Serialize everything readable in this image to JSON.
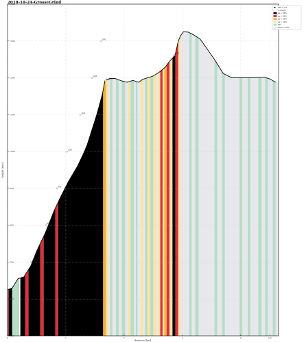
{
  "chart_data": {
    "type": "area",
    "title": "2018-10-24-GrosseGrind",
    "xlabel": "distance [km]",
    "ylabel": "height [mas]",
    "xlim": [
      0,
      4.65
    ],
    "ylim": [
      500,
      1400
    ],
    "x_ticks": [
      {
        "value": 0,
        "label": "0"
      },
      {
        "value": 1,
        "label": "1"
      },
      {
        "value": 2,
        "label": "2"
      },
      {
        "value": 3,
        "label": "3"
      },
      {
        "value": 4,
        "label": "4"
      },
      {
        "value": 4.5,
        "label": "4.5"
      }
    ],
    "y_ticks": [
      {
        "value": 500,
        "label": "500"
      },
      {
        "value": 600,
        "label": "600"
      },
      {
        "value": 700,
        "label": "700"
      },
      {
        "value": 800,
        "label": "800"
      },
      {
        "value": 900,
        "label": "900"
      },
      {
        "value": 1000,
        "label": "1000"
      },
      {
        "value": 1100,
        "label": "1100"
      },
      {
        "value": 1200,
        "label": "1200"
      },
      {
        "value": 1300,
        "label": "1300"
      },
      {
        "value": 1400,
        "label": "1400"
      }
    ],
    "profile": [
      [
        0.0,
        625
      ],
      [
        0.08,
        630
      ],
      [
        0.18,
        655
      ],
      [
        0.28,
        660
      ],
      [
        0.4,
        690
      ],
      [
        0.5,
        730
      ],
      [
        0.65,
        780
      ],
      [
        0.8,
        840
      ],
      [
        0.92,
        880
      ],
      [
        1.05,
        920
      ],
      [
        1.2,
        960
      ],
      [
        1.35,
        1010
      ],
      [
        1.45,
        1060
      ],
      [
        1.55,
        1110
      ],
      [
        1.62,
        1150
      ],
      [
        1.67,
        1192
      ],
      [
        1.75,
        1198
      ],
      [
        1.85,
        1198
      ],
      [
        1.95,
        1192
      ],
      [
        2.05,
        1188
      ],
      [
        2.15,
        1193
      ],
      [
        2.25,
        1188
      ],
      [
        2.32,
        1196
      ],
      [
        2.4,
        1200
      ],
      [
        2.5,
        1205
      ],
      [
        2.6,
        1215
      ],
      [
        2.7,
        1228
      ],
      [
        2.78,
        1245
      ],
      [
        2.84,
        1255
      ],
      [
        2.88,
        1265
      ],
      [
        2.93,
        1300
      ],
      [
        2.97,
        1315
      ],
      [
        3.02,
        1325
      ],
      [
        3.1,
        1324
      ],
      [
        3.2,
        1316
      ],
      [
        3.3,
        1306
      ],
      [
        3.4,
        1284
      ],
      [
        3.55,
        1250
      ],
      [
        3.7,
        1212
      ],
      [
        3.85,
        1200
      ],
      [
        4.0,
        1200
      ],
      [
        4.2,
        1200
      ],
      [
        4.4,
        1202
      ],
      [
        4.5,
        1197
      ],
      [
        4.6,
        1188
      ]
    ],
    "bands": [
      {
        "from": 0.0,
        "to": 0.02,
        "cat": "red"
      },
      {
        "from": 0.02,
        "to": 0.08,
        "cat": "black"
      },
      {
        "from": 0.08,
        "to": 0.2,
        "cat": "green"
      },
      {
        "from": 0.22,
        "to": 0.3,
        "cat": "black"
      },
      {
        "from": 0.3,
        "to": 0.36,
        "cat": "red"
      },
      {
        "from": 0.36,
        "to": 0.56,
        "cat": "black"
      },
      {
        "from": 0.56,
        "to": 0.62,
        "cat": "red"
      },
      {
        "from": 0.62,
        "to": 0.82,
        "cat": "black"
      },
      {
        "from": 0.82,
        "to": 0.87,
        "cat": "red"
      },
      {
        "from": 0.87,
        "to": 1.64,
        "cat": "black"
      },
      {
        "from": 1.64,
        "to": 1.69,
        "cat": "orange"
      },
      {
        "from": 1.69,
        "to": 1.73,
        "cat": "yellow"
      },
      {
        "from": 1.73,
        "to": 1.76,
        "cat": "lgray"
      },
      {
        "from": 1.76,
        "to": 1.8,
        "cat": "green"
      },
      {
        "from": 1.8,
        "to": 1.86,
        "cat": "lgray"
      },
      {
        "from": 1.86,
        "to": 1.91,
        "cat": "green"
      },
      {
        "from": 1.91,
        "to": 1.96,
        "cat": "lgray"
      },
      {
        "from": 1.96,
        "to": 2.02,
        "cat": "green"
      },
      {
        "from": 2.02,
        "to": 2.07,
        "cat": "lgray"
      },
      {
        "from": 2.07,
        "to": 2.11,
        "cat": "yellow"
      },
      {
        "from": 2.11,
        "to": 2.17,
        "cat": "green"
      },
      {
        "from": 2.17,
        "to": 2.2,
        "cat": "lgray"
      },
      {
        "from": 2.2,
        "to": 2.23,
        "cat": "green"
      },
      {
        "from": 2.23,
        "to": 2.28,
        "cat": "lgray"
      },
      {
        "from": 2.28,
        "to": 2.33,
        "cat": "yellow"
      },
      {
        "from": 2.33,
        "to": 2.36,
        "cat": "lgray"
      },
      {
        "from": 2.36,
        "to": 2.4,
        "cat": "green"
      },
      {
        "from": 2.4,
        "to": 2.45,
        "cat": "yellow"
      },
      {
        "from": 2.45,
        "to": 2.5,
        "cat": "green"
      },
      {
        "from": 2.5,
        "to": 2.55,
        "cat": "yellow"
      },
      {
        "from": 2.55,
        "to": 2.58,
        "cat": "lgray"
      },
      {
        "from": 2.58,
        "to": 2.62,
        "cat": "yellow"
      },
      {
        "from": 2.62,
        "to": 2.66,
        "cat": "red"
      },
      {
        "from": 2.66,
        "to": 2.69,
        "cat": "yellow"
      },
      {
        "from": 2.69,
        "to": 2.73,
        "cat": "orange"
      },
      {
        "from": 2.73,
        "to": 2.78,
        "cat": "red"
      },
      {
        "from": 2.78,
        "to": 2.83,
        "cat": "yellow"
      },
      {
        "from": 2.83,
        "to": 2.88,
        "cat": "black"
      },
      {
        "from": 2.88,
        "to": 2.93,
        "cat": "red"
      },
      {
        "from": 2.93,
        "to": 2.97,
        "cat": "yellow"
      },
      {
        "from": 2.97,
        "to": 3.12,
        "cat": "lgray"
      },
      {
        "from": 3.12,
        "to": 3.16,
        "cat": "green"
      },
      {
        "from": 3.16,
        "to": 3.22,
        "cat": "lgray"
      },
      {
        "from": 3.22,
        "to": 3.28,
        "cat": "green"
      },
      {
        "from": 3.28,
        "to": 3.55,
        "cat": "lgray"
      },
      {
        "from": 3.55,
        "to": 3.6,
        "cat": "green"
      },
      {
        "from": 3.6,
        "to": 3.68,
        "cat": "lgray"
      },
      {
        "from": 3.68,
        "to": 3.73,
        "cat": "green"
      },
      {
        "from": 3.73,
        "to": 3.98,
        "cat": "lgray"
      },
      {
        "from": 3.98,
        "to": 4.03,
        "cat": "green"
      },
      {
        "from": 4.03,
        "to": 4.12,
        "cat": "lgray"
      },
      {
        "from": 4.12,
        "to": 4.17,
        "cat": "green"
      },
      {
        "from": 4.17,
        "to": 4.3,
        "cat": "lgray"
      },
      {
        "from": 4.3,
        "to": 4.36,
        "cat": "green"
      },
      {
        "from": 4.36,
        "to": 4.42,
        "cat": "lgray"
      },
      {
        "from": 4.42,
        "to": 4.47,
        "cat": "green"
      },
      {
        "from": 4.47,
        "to": 4.55,
        "cat": "lgray"
      },
      {
        "from": 4.55,
        "to": 4.6,
        "cat": "green"
      },
      {
        "from": 4.6,
        "to": 4.65,
        "cat": "lgray"
      }
    ],
    "markers": [
      {
        "x": 0.4,
        "y": 700,
        "label": "700"
      },
      {
        "x": 0.66,
        "y": 800,
        "label": "800"
      },
      {
        "x": 0.85,
        "y": 900,
        "label": "900"
      },
      {
        "x": 1.02,
        "y": 1000,
        "label": "1000"
      },
      {
        "x": 1.25,
        "y": 1100,
        "label": "1100"
      },
      {
        "x": 1.45,
        "y": 1200,
        "label": "1200"
      },
      {
        "x": 1.6,
        "y": 1300,
        "label": "1300"
      },
      {
        "x": 1.68,
        "y": 1192,
        "label": "1400"
      },
      {
        "x": 2.86,
        "y": 1262,
        "label": "1500"
      }
    ],
    "legend": {
      "position": "top-right",
      "items": [
        {
          "label": "200 m ref",
          "cat": "marker"
        },
        {
          "label": "1:1 & 20°",
          "cat": "white"
        },
        {
          "label": "up > 45%",
          "cat": "black"
        },
        {
          "label": "up > 30%",
          "cat": "red"
        },
        {
          "label": "up > 20%",
          "cat": "orange"
        },
        {
          "label": "up > 10%",
          "cat": "yellow"
        },
        {
          "label": "flat",
          "cat": "green"
        },
        {
          "label": "down < 10%",
          "cat": "lgray"
        }
      ]
    },
    "colors": {
      "black": "#000000",
      "red": "#d6323e",
      "orange": "#f2b13a",
      "yellow": "#f9e3a6",
      "green": "#b8dcc8",
      "lgray": "#e6e8ec",
      "white": "#ffffff",
      "marker": "#000000",
      "line": "#000000"
    }
  }
}
